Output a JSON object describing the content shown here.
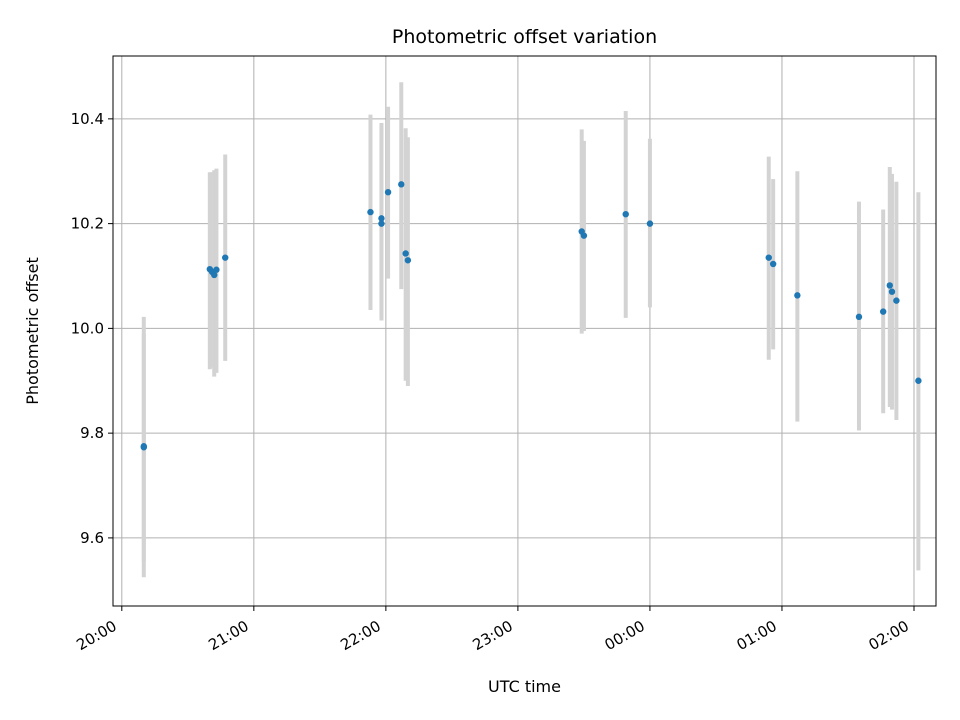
{
  "chart_data": {
    "type": "scatter",
    "title": "Photometric offset variation",
    "xlabel": "UTC time",
    "ylabel": "Photometric offset",
    "grid": true,
    "x_tick_labels": [
      "20:00",
      "21:00",
      "22:00",
      "23:00",
      "00:00",
      "01:00",
      "02:00"
    ],
    "x_ticks": [
      "20:00",
      "21:00",
      "22:00",
      "23:00",
      "24:00",
      "25:00",
      "26:00"
    ],
    "xlim": [
      "19:56",
      "26:10"
    ],
    "y_ticks": [
      9.6,
      9.8,
      10.0,
      10.2,
      10.4
    ],
    "y_tick_labels": [
      "9.6",
      "9.8",
      "10.0",
      "10.2",
      "10.4"
    ],
    "ylim": [
      9.47,
      10.52
    ],
    "marker_color": "#1f77b4",
    "errorbar_color": "#d3d3d3",
    "series": [
      {
        "points": [
          {
            "t": "20:10",
            "y": 9.773,
            "lo": 9.525,
            "hi": 10.022
          },
          {
            "t": "20:10",
            "y": 9.775,
            "lo": 9.555,
            "hi": 9.99
          },
          {
            "t": "20:40",
            "y": 10.113,
            "lo": 9.922,
            "hi": 10.298
          },
          {
            "t": "20:41",
            "y": 10.108,
            "lo": 9.925,
            "hi": 10.298
          },
          {
            "t": "20:42",
            "y": 10.102,
            "lo": 9.908,
            "hi": 10.302
          },
          {
            "t": "20:43",
            "y": 10.112,
            "lo": 9.915,
            "hi": 10.305
          },
          {
            "t": "20:47",
            "y": 10.135,
            "lo": 9.938,
            "hi": 10.332
          },
          {
            "t": "21:53",
            "y": 10.222,
            "lo": 10.035,
            "hi": 10.408
          },
          {
            "t": "21:58",
            "y": 10.21,
            "lo": 10.02,
            "hi": 10.392
          },
          {
            "t": "21:58",
            "y": 10.2,
            "lo": 10.015,
            "hi": 10.385
          },
          {
            "t": "22:01",
            "y": 10.26,
            "lo": 10.095,
            "hi": 10.423
          },
          {
            "t": "22:07",
            "y": 10.275,
            "lo": 10.075,
            "hi": 10.47
          },
          {
            "t": "22:09",
            "y": 10.143,
            "lo": 9.9,
            "hi": 10.382
          },
          {
            "t": "22:10",
            "y": 10.13,
            "lo": 9.89,
            "hi": 10.365
          },
          {
            "t": "23:29",
            "y": 10.185,
            "lo": 9.99,
            "hi": 10.38
          },
          {
            "t": "23:30",
            "y": 10.177,
            "lo": 9.995,
            "hi": 10.358
          },
          {
            "t": "23:49",
            "y": 10.218,
            "lo": 10.02,
            "hi": 10.415
          },
          {
            "t": "24:00",
            "y": 10.2,
            "lo": 10.04,
            "hi": 10.362
          },
          {
            "t": "24:54",
            "y": 10.135,
            "lo": 9.94,
            "hi": 10.328
          },
          {
            "t": "24:56",
            "y": 10.123,
            "lo": 9.96,
            "hi": 10.285
          },
          {
            "t": "25:07",
            "y": 10.063,
            "lo": 9.822,
            "hi": 10.3
          },
          {
            "t": "25:35",
            "y": 10.022,
            "lo": 9.805,
            "hi": 10.242
          },
          {
            "t": "25:46",
            "y": 10.032,
            "lo": 9.838,
            "hi": 10.227
          },
          {
            "t": "25:49",
            "y": 10.082,
            "lo": 9.85,
            "hi": 10.308
          },
          {
            "t": "25:50",
            "y": 10.07,
            "lo": 9.845,
            "hi": 10.295
          },
          {
            "t": "25:52",
            "y": 10.053,
            "lo": 9.825,
            "hi": 10.28
          },
          {
            "t": "26:02",
            "y": 9.9,
            "lo": 9.538,
            "hi": 10.26
          }
        ]
      }
    ]
  }
}
